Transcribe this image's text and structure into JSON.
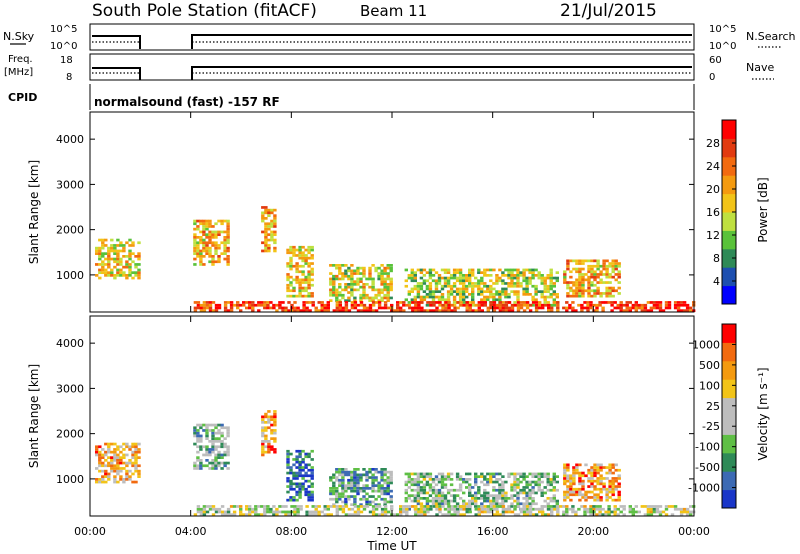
{
  "header": {
    "station": "South Pole Station (fitACF)",
    "beam": "Beam 11",
    "date": "21/Jul/2015"
  },
  "sky_panel": {
    "left_label": "N.Sky",
    "left_ticks": [
      "10^5",
      "10^0"
    ],
    "right_label": "N.Search",
    "right_ticks": [
      "10^5",
      "10^0"
    ],
    "gaps_hours": [
      [
        1.95,
        4.05
      ]
    ]
  },
  "freq_panel": {
    "left_label_line1": "Freq.",
    "left_label_line2": "[MHz]",
    "left_ticks": [
      "18",
      "8"
    ],
    "right_label": "Nave",
    "right_ticks": [
      "60",
      "0"
    ],
    "gaps_hours": [
      [
        1.95,
        4.05
      ]
    ]
  },
  "cpid": {
    "label": "CPID",
    "program": "normalsound (fast) -157 RF"
  },
  "colors": {
    "power_scale": [
      "#0000ff",
      "#1d4fb0",
      "#2e8a57",
      "#59c23a",
      "#bfe040",
      "#f2c418",
      "#f49a0f",
      "#f26a0f",
      "#e23a10",
      "#ff0000"
    ],
    "velocity_scale": [
      "#1a36c8",
      "#3c6ab4",
      "#2e8a57",
      "#5fbf45",
      "#bdbdbd",
      "#bdbdbd",
      "#f2c418",
      "#f49a0f",
      "#f26a0f",
      "#ff0000"
    ]
  },
  "chart_data": [
    {
      "type": "heatmap",
      "name": "power",
      "xlabel": "",
      "ylabel": "Slant Range [km]",
      "x_ticks": [
        "00:00",
        "04:00",
        "08:00",
        "12:00",
        "16:00",
        "20:00",
        "00:00"
      ],
      "x_range_hours": [
        0,
        24
      ],
      "y_ticks": [
        1000,
        2000,
        3000,
        4000
      ],
      "y_range_km": [
        180,
        4600
      ],
      "colorbar_label": "Power [dB]",
      "colorbar_ticks": [
        "28",
        "24",
        "20",
        "16",
        "12",
        "8",
        "4"
      ],
      "data_gaps_hours": [
        [
          1.95,
          4.05
        ]
      ],
      "regions": [
        {
          "t0": 0.2,
          "t1": 1.9,
          "r0": 900,
          "r1": 1800,
          "level": 0.55
        },
        {
          "t0": 4.1,
          "t1": 5.5,
          "r0": 1200,
          "r1": 2200,
          "level": 0.6
        },
        {
          "t0": 6.8,
          "t1": 7.4,
          "r0": 1500,
          "r1": 2500,
          "level": 0.65
        },
        {
          "t0": 7.8,
          "t1": 8.8,
          "r0": 500,
          "r1": 1600,
          "level": 0.55
        },
        {
          "t0": 9.5,
          "t1": 12.0,
          "r0": 400,
          "r1": 1200,
          "level": 0.5
        },
        {
          "t0": 12.5,
          "t1": 18.5,
          "r0": 300,
          "r1": 1100,
          "level": 0.45
        },
        {
          "t0": 18.8,
          "t1": 21.0,
          "r0": 500,
          "r1": 1300,
          "level": 0.6
        },
        {
          "t0": 4.0,
          "t1": 24.0,
          "r0": 180,
          "r1": 420,
          "level": 0.85
        }
      ]
    },
    {
      "type": "heatmap",
      "name": "velocity",
      "xlabel": "Time UT",
      "ylabel": "Slant Range [km]",
      "x_ticks": [
        "00:00",
        "04:00",
        "08:00",
        "12:00",
        "16:00",
        "20:00",
        "00:00"
      ],
      "x_range_hours": [
        0,
        24
      ],
      "y_ticks": [
        1000,
        2000,
        3000,
        4000
      ],
      "y_range_km": [
        180,
        4600
      ],
      "colorbar_label": "Velocity [m s⁻¹]",
      "colorbar_ticks": [
        "1000",
        "500",
        "100",
        "25",
        "-25",
        "-100",
        "-500",
        "-1000"
      ],
      "data_gaps_hours": [
        [
          1.95,
          4.05
        ]
      ],
      "regions": [
        {
          "t0": 0.2,
          "t1": 1.9,
          "r0": 900,
          "r1": 1800,
          "level": 0.7
        },
        {
          "t0": 4.1,
          "t1": 5.5,
          "r0": 1200,
          "r1": 2200,
          "level": 0.35
        },
        {
          "t0": 6.8,
          "t1": 7.4,
          "r0": 1500,
          "r1": 2500,
          "level": 0.75
        },
        {
          "t0": 7.8,
          "t1": 8.8,
          "r0": 500,
          "r1": 1600,
          "level": 0.15
        },
        {
          "t0": 9.5,
          "t1": 12.0,
          "r0": 400,
          "r1": 1200,
          "level": 0.3
        },
        {
          "t0": 12.5,
          "t1": 18.5,
          "r0": 300,
          "r1": 1100,
          "level": 0.4
        },
        {
          "t0": 18.8,
          "t1": 21.0,
          "r0": 500,
          "r1": 1300,
          "level": 0.75
        },
        {
          "t0": 4.0,
          "t1": 24.0,
          "r0": 180,
          "r1": 420,
          "level": 0.5
        }
      ]
    }
  ]
}
